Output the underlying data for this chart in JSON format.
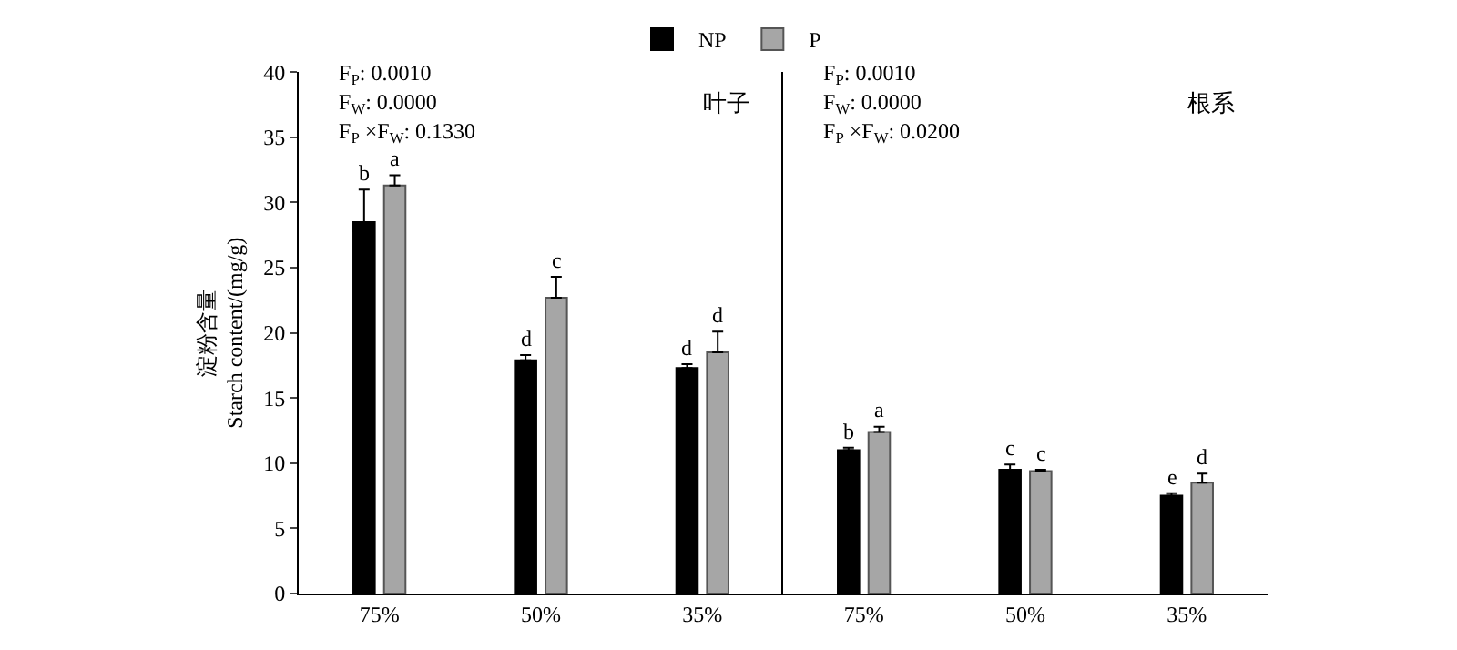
{
  "chart_data": [
    {
      "type": "bar",
      "title": "叶子",
      "ylabel": "淀粉含量\nStarch content/(mg/g)",
      "categories": [
        "75%",
        "50%",
        "35%"
      ],
      "series": [
        {
          "name": "NP",
          "color": "#000000",
          "values": [
            28.5,
            17.9,
            17.3
          ],
          "errors": [
            2.5,
            0.4,
            0.3
          ],
          "value_labels": [
            "b",
            "d",
            "d"
          ]
        },
        {
          "name": "P",
          "color": "#a6a6a6",
          "values": [
            31.3,
            22.7,
            18.5
          ],
          "errors": [
            0.8,
            1.6,
            1.6
          ],
          "value_labels": [
            "a",
            "c",
            "d"
          ]
        }
      ],
      "annotations": [
        "F$_{P}$: 0.0010",
        "F$_{W}$: 0.0000",
        "F$_{P}$ ×F$_{W}$: 0.1330"
      ],
      "ylim": [
        0,
        40
      ],
      "yticks": [
        0,
        5,
        10,
        15,
        20,
        25,
        30,
        35,
        40
      ],
      "legend": "top"
    },
    {
      "type": "bar",
      "title": "根系",
      "categories": [
        "75%",
        "50%",
        "35%"
      ],
      "series": [
        {
          "color": "#000000",
          "values": [
            11.0,
            9.5,
            7.5
          ],
          "errors": [
            0.2,
            0.4,
            0.2
          ],
          "value_labels": [
            "b",
            "c",
            "e"
          ]
        },
        {
          "color": "#a6a6a6",
          "values": [
            12.4,
            9.4,
            8.5
          ],
          "errors": [
            0.4,
            0.1,
            0.7
          ],
          "value_labels": [
            "a",
            "c",
            "d"
          ]
        }
      ],
      "annotations": [
        "F$_{P}$: 0.0010",
        "F$_{W}$: 0.0000",
        "F$_{P}$ ×F$_{W}$: 0.0200"
      ],
      "ylim": [
        0,
        40
      ],
      "yticks": [
        0,
        5,
        10,
        15,
        20,
        25,
        30,
        35,
        40
      ],
      "tick_labels": "x",
      "legend": false
    }
  ]
}
